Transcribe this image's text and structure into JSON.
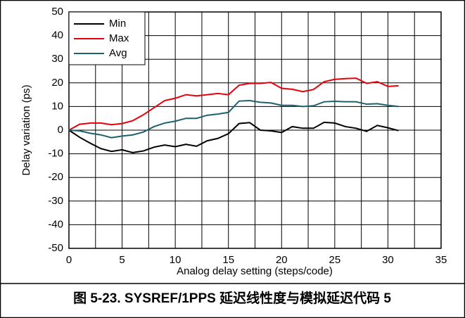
{
  "chart_data": {
    "type": "line",
    "caption": "图 5-23. SYSREF/1PPS 延迟线性度与模拟延迟代码 5",
    "xlabel": "Analog delay setting (steps/code)",
    "ylabel": "Delay variation (ps)",
    "x": [
      0,
      1,
      2,
      3,
      4,
      5,
      6,
      7,
      8,
      9,
      10,
      11,
      12,
      13,
      14,
      15,
      16,
      17,
      18,
      19,
      20,
      21,
      22,
      23,
      24,
      25,
      26,
      27,
      28,
      29,
      30,
      31
    ],
    "series": [
      {
        "name": "Min",
        "color": "#000000",
        "values": [
          0,
          -3,
          -5.5,
          -7.8,
          -9,
          -8.3,
          -9.5,
          -8.8,
          -7.2,
          -6.3,
          -7,
          -6,
          -6.8,
          -4.5,
          -3.5,
          -1.5,
          2.8,
          3.2,
          0,
          -0.3,
          -1,
          1.5,
          0.8,
          0.8,
          3.3,
          3,
          1.5,
          0.8,
          -0.5,
          2,
          1,
          -0.2
        ]
      },
      {
        "name": "Max",
        "color": "#e8000b",
        "values": [
          0,
          2.5,
          3,
          3,
          2.3,
          2.8,
          4,
          6.5,
          9.5,
          12.5,
          13.5,
          15,
          14.5,
          15,
          15.5,
          15,
          19,
          19.8,
          19.8,
          20.2,
          17.7,
          17.3,
          16.3,
          17.2,
          20.5,
          21.5,
          21.8,
          22,
          19.8,
          20.5,
          18.5,
          18.8
        ]
      },
      {
        "name": "Avg",
        "color": "#1f6070",
        "values": [
          0,
          -0.3,
          -1.3,
          -2,
          -3.2,
          -2.5,
          -2,
          -0.8,
          1.5,
          3,
          3.8,
          5,
          5,
          6.3,
          6.8,
          7.5,
          12.3,
          12.5,
          11.8,
          11.5,
          10.5,
          10.5,
          10,
          10.3,
          12,
          12.2,
          12,
          12,
          11,
          11.2,
          10.5,
          10
        ]
      }
    ],
    "xlim": [
      0,
      35
    ],
    "xticks": [
      0,
      5,
      10,
      15,
      20,
      25,
      30,
      35
    ],
    "xgrid": [
      0,
      2.5,
      5,
      7.5,
      10,
      12.5,
      15,
      17.5,
      20,
      22.5,
      25,
      27.5,
      30,
      32.5,
      35
    ],
    "ylim": [
      -50,
      50
    ],
    "yticks": [
      -50,
      -40,
      -30,
      -20,
      -10,
      0,
      10,
      20,
      30,
      40,
      50
    ],
    "grid": true,
    "legend": "top-left"
  }
}
